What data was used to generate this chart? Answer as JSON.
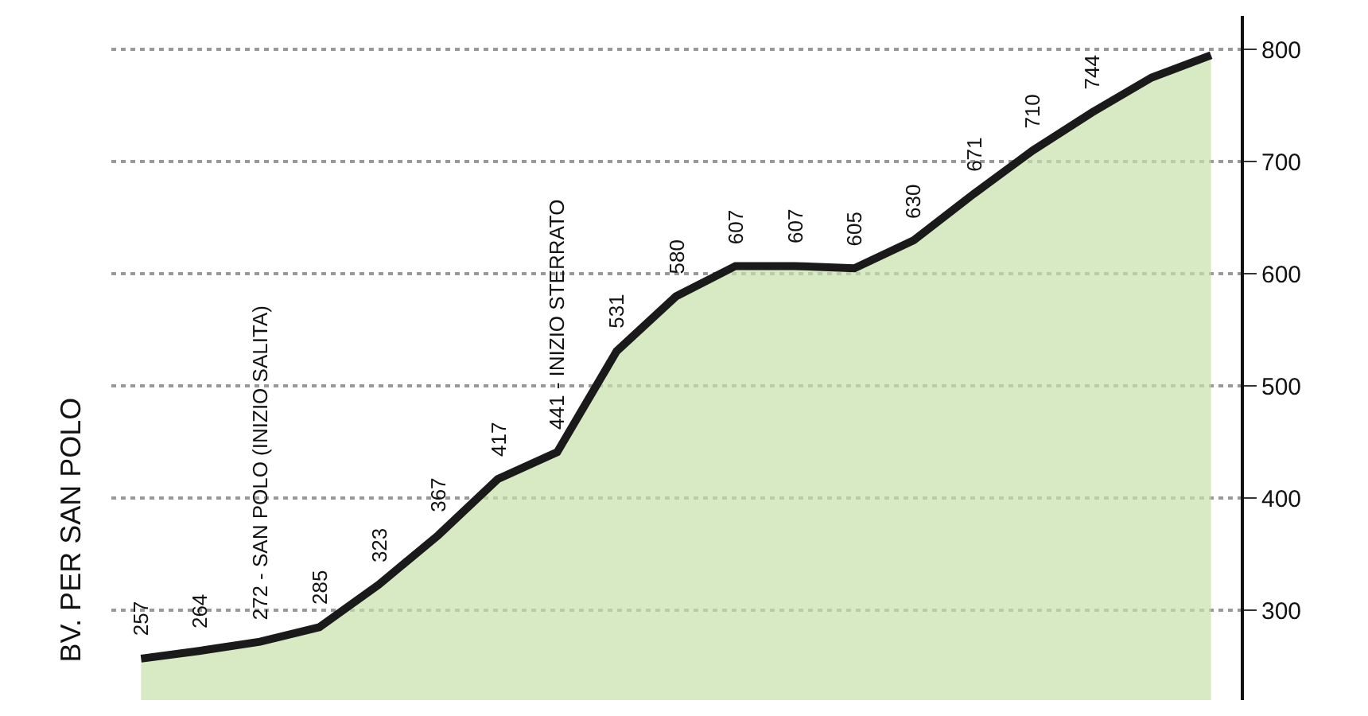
{
  "chart_data": {
    "type": "area",
    "categories": [
      null,
      null,
      null,
      null,
      null,
      null,
      null,
      null,
      null,
      null,
      null,
      null,
      null,
      null,
      null,
      null,
      null,
      null,
      null
    ],
    "series": [
      {
        "color": "#1a1a1a",
        "values": [
          257,
          264,
          272,
          285,
          323,
          367,
          417,
          441,
          531,
          580,
          607,
          607,
          605,
          630,
          671,
          710,
          744,
          775,
          795
        ],
        "value_labels": [
          "257",
          "264",
          "272 - SAN POLO (INIZIO SALITA)",
          "285",
          "323",
          "367",
          "417",
          "441 - INIZIO STERRATO",
          "531",
          "580",
          "607",
          "607",
          "605",
          "630",
          "671",
          "710",
          "744",
          null,
          null
        ]
      }
    ],
    "annotations": [
      "BV. PER SAN POLO"
    ],
    "ylim": [
      220,
      830
    ],
    "yticks": [
      300,
      400,
      500,
      600,
      700,
      800
    ],
    "grid": "y",
    "line_style": "solid",
    "marker": "none",
    "legend": false
  }
}
